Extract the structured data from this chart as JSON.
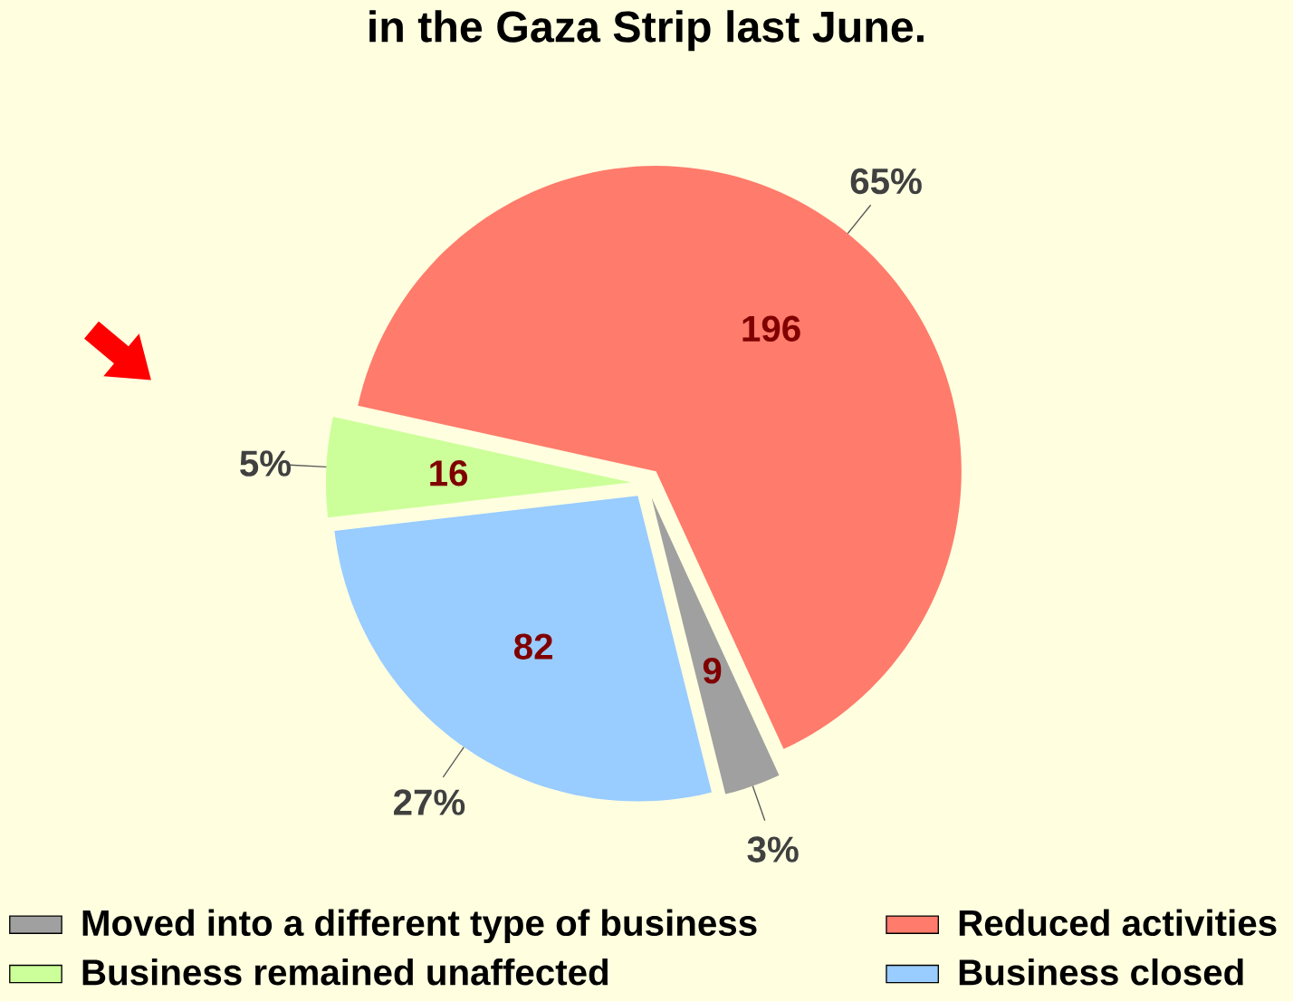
{
  "chart_data": {
    "type": "pie",
    "title": "in the Gaza Strip last June.",
    "categories": [
      "Moved into a different type of business",
      "Reduced activities",
      "Business remained unaffected",
      "Business closed"
    ],
    "values": [
      9,
      196,
      16,
      82
    ],
    "colors": [
      "#a0a0a0",
      "#ff7b6b",
      "#ccff99",
      "#99ccff"
    ],
    "data_labels": true,
    "annotations": [
      "3%",
      "65%",
      "5%",
      "27%"
    ],
    "legend": "bottom"
  }
}
